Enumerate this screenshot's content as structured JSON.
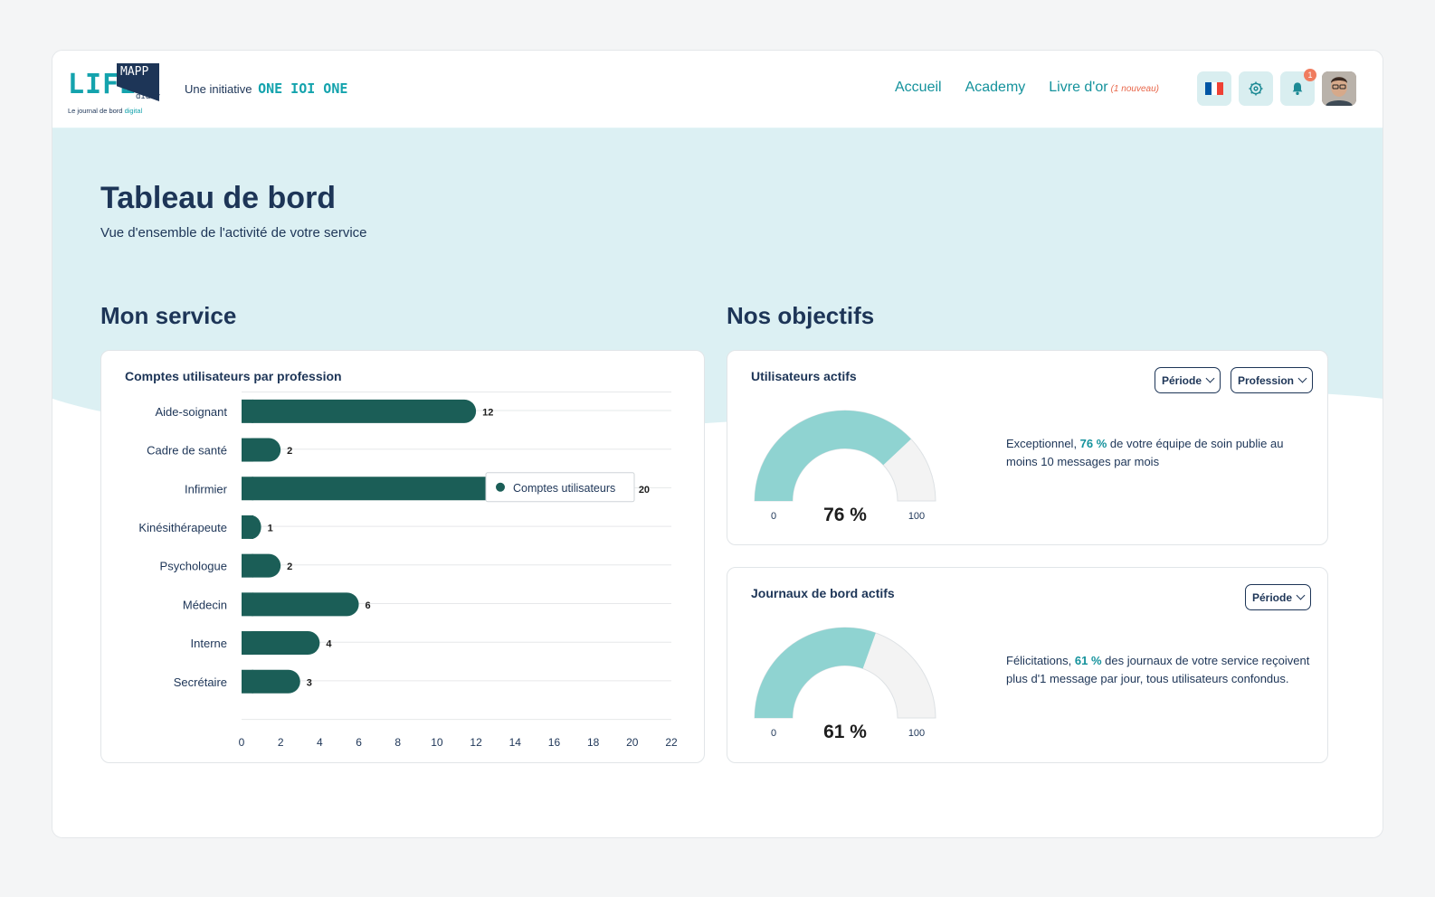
{
  "header": {
    "logo": {
      "life": "LIFE",
      "mapp": "MAPP",
      "diary": "diary",
      "tagline_prefix": "Le journal de bord",
      "tagline_accent": "digital"
    },
    "initiative_label": "Une initiative",
    "initiative_brand": "ONE IOI ONE",
    "nav": [
      {
        "label": "Accueil"
      },
      {
        "label": "Academy"
      },
      {
        "label": "Livre d'or",
        "note": "(1 nouveau)"
      }
    ],
    "notifications_count": "1",
    "flag_colors": [
      "#0055a4",
      "#ffffff",
      "#ef4135"
    ]
  },
  "page": {
    "title": "Tableau de bord",
    "subtitle": "Vue d'ensemble de l'activité de votre service"
  },
  "sections": {
    "left_title": "Mon service",
    "right_title": "Nos objectifs"
  },
  "bar_card": {
    "title": "Comptes utilisateurs par profession",
    "tooltip": "Comptes utilisateurs"
  },
  "chart_data": [
    {
      "type": "bar",
      "orientation": "horizontal",
      "title": "Comptes utilisateurs par profession",
      "categories": [
        "Aide-soignant",
        "Cadre de santé",
        "Infirmier",
        "Kinésithérapeute",
        "Psychologue",
        "Médecin",
        "Interne",
        "Secrétaire"
      ],
      "series": [
        {
          "name": "Comptes utilisateurs",
          "values": [
            12,
            2,
            20,
            1,
            2,
            6,
            4,
            3
          ]
        }
      ],
      "xlim": [
        0,
        22
      ],
      "xticks": [
        0,
        2,
        4,
        6,
        8,
        10,
        12,
        14,
        16,
        18,
        20,
        22
      ],
      "grid": true,
      "color": "#1b5e57"
    },
    {
      "type": "gauge",
      "title": "Utilisateurs actifs",
      "value": 76,
      "min": 0,
      "max": 100,
      "display": "76 %"
    },
    {
      "type": "gauge",
      "title": "Journaux de bord actifs",
      "value": 61,
      "min": 0,
      "max": 100,
      "display": "61 %"
    }
  ],
  "gauge_cards": [
    {
      "title": "Utilisateurs actifs",
      "filters": [
        "Période",
        "Profession"
      ],
      "min_label": "0",
      "max_label": "100",
      "value_label": "76 %",
      "text_before": "Exceptionnel, ",
      "text_pct": "76 %",
      "text_after": " de votre équipe de soin publie au moins 10 messages par mois"
    },
    {
      "title": "Journaux de bord actifs",
      "filters": [
        "Période"
      ],
      "min_label": "0",
      "max_label": "100",
      "value_label": "61 %",
      "text_before": "Félicitations, ",
      "text_pct": "61 %",
      "text_after": " des journaux de votre service reçoivent plus d'1 message par jour, tous utilisateurs confondus."
    }
  ],
  "colors": {
    "accent": "#14a3ad",
    "navy": "#1d3557",
    "bar": "#1b5e57",
    "gauge_fill": "#8fd3d1",
    "gauge_track": "#f1f1f1",
    "hero": "#dcf0f3",
    "alert": "#f07c5f"
  }
}
